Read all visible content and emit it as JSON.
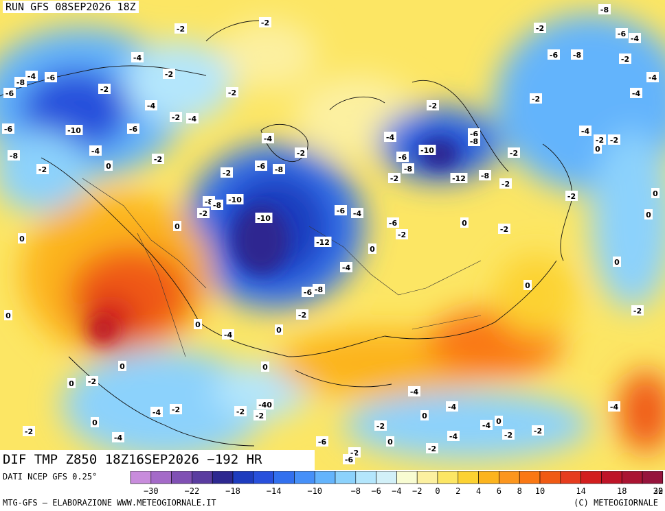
{
  "header": {
    "run_title": "RUN GFS 08SEP2026 18Z"
  },
  "map": {
    "field_title": "DIF TMP Z850 18Z16SEP2026 −192 HR",
    "values": [
      {
        "label": "-8"
      },
      {
        "label": "-2"
      },
      {
        "label": "-2"
      },
      {
        "label": "-6"
      },
      {
        "label": "-4"
      },
      {
        "label": "-2"
      },
      {
        "label": "-6"
      },
      {
        "label": "-8"
      },
      {
        "label": "-2"
      },
      {
        "label": "-4"
      },
      {
        "label": "-4"
      },
      {
        "label": "-6"
      },
      {
        "label": "-4"
      },
      {
        "label": "-2"
      },
      {
        "label": "-2"
      },
      {
        "label": "-2"
      },
      {
        "label": "-4"
      },
      {
        "label": "-6"
      },
      {
        "label": "-2"
      },
      {
        "label": "-4"
      },
      {
        "label": "-2"
      },
      {
        "label": "-4"
      },
      {
        "label": "-2"
      },
      {
        "label": "-8"
      },
      {
        "label": "-10"
      },
      {
        "label": "-6"
      },
      {
        "label": "-6"
      },
      {
        "label": "-4"
      },
      {
        "label": "-4"
      },
      {
        "label": "-2"
      },
      {
        "label": "0"
      },
      {
        "label": "-8"
      },
      {
        "label": "-2"
      },
      {
        "label": "-2"
      },
      {
        "label": "-4"
      },
      {
        "label": "-2"
      },
      {
        "label": "-6"
      },
      {
        "label": "-8"
      },
      {
        "label": "-4"
      },
      {
        "label": "-6"
      },
      {
        "label": "-10"
      },
      {
        "label": "-8"
      },
      {
        "label": "-6"
      },
      {
        "label": "-2"
      },
      {
        "label": "-2"
      },
      {
        "label": "-12"
      },
      {
        "label": "-8"
      },
      {
        "label": "-2"
      },
      {
        "label": "-2"
      },
      {
        "label": "-8"
      },
      {
        "label": "-2"
      },
      {
        "label": "0"
      },
      {
        "label": "-8"
      },
      {
        "label": "-10"
      },
      {
        "label": "-8"
      },
      {
        "label": "-10"
      },
      {
        "label": "-6"
      },
      {
        "label": "-4"
      },
      {
        "label": "-6"
      },
      {
        "label": "-2"
      },
      {
        "label": "0"
      },
      {
        "label": "-2"
      },
      {
        "label": "0"
      },
      {
        "label": "-2"
      },
      {
        "label": "-12"
      },
      {
        "label": "0"
      },
      {
        "label": "-4"
      },
      {
        "label": "0"
      },
      {
        "label": "0"
      },
      {
        "label": "-6"
      },
      {
        "label": "-8"
      },
      {
        "label": "-2"
      },
      {
        "label": "0"
      },
      {
        "label": "0"
      },
      {
        "label": "-2"
      },
      {
        "label": "-4"
      },
      {
        "label": "0"
      },
      {
        "label": "0"
      },
      {
        "label": "-2"
      },
      {
        "label": "0"
      },
      {
        "label": "0"
      },
      {
        "label": "-4"
      },
      {
        "label": "-2"
      },
      {
        "label": "-40"
      },
      {
        "label": "-2"
      },
      {
        "label": "-2"
      },
      {
        "label": "0"
      },
      {
        "label": "0"
      },
      {
        "label": "0"
      },
      {
        "label": "-2"
      },
      {
        "label": "-4"
      },
      {
        "label": "0"
      },
      {
        "label": "-4"
      },
      {
        "label": "0"
      },
      {
        "label": "-2"
      },
      {
        "label": "-4"
      },
      {
        "label": "0"
      },
      {
        "label": "-2"
      },
      {
        "label": "-4"
      },
      {
        "label": "0"
      },
      {
        "label": "-2"
      },
      {
        "label": "-4"
      },
      {
        "label": "-2"
      },
      {
        "label": "-6"
      },
      {
        "label": "-2"
      },
      {
        "label": "-2"
      },
      {
        "label": "-6"
      },
      {
        "label": "-4"
      }
    ]
  },
  "legend": {
    "source_label": "DATI NCEP GFS 0.25°",
    "tick_labels": [
      "−30",
      "−22",
      "−18",
      "−14",
      "−10",
      "−8",
      "−6",
      "−4",
      "−2",
      "0",
      "2",
      "4",
      "6",
      "8",
      "10",
      "14",
      "18",
      "22",
      "30"
    ],
    "colors": [
      "#c88cdc",
      "#a46ac8",
      "#8050b4",
      "#5a3ca0",
      "#2d2890",
      "#1e3cbe",
      "#2850dc",
      "#3270ee",
      "#4690f8",
      "#64b4fc",
      "#8cd2fc",
      "#b4e6fc",
      "#d2f0f8",
      "#f8fcd2",
      "#fcf0a0",
      "#fce664",
      "#fcd232",
      "#fcb41e",
      "#fc961e",
      "#fa7814",
      "#f05a14",
      "#e63c1e",
      "#d21e1e",
      "#be1428",
      "#aa1432",
      "#96143c"
    ]
  },
  "footer": {
    "credit_left": "MTG-GFS – ELABORAZIONE WWW.METEOGIORNALE.IT",
    "credit_right": "(C) METEOGIORNALE"
  }
}
